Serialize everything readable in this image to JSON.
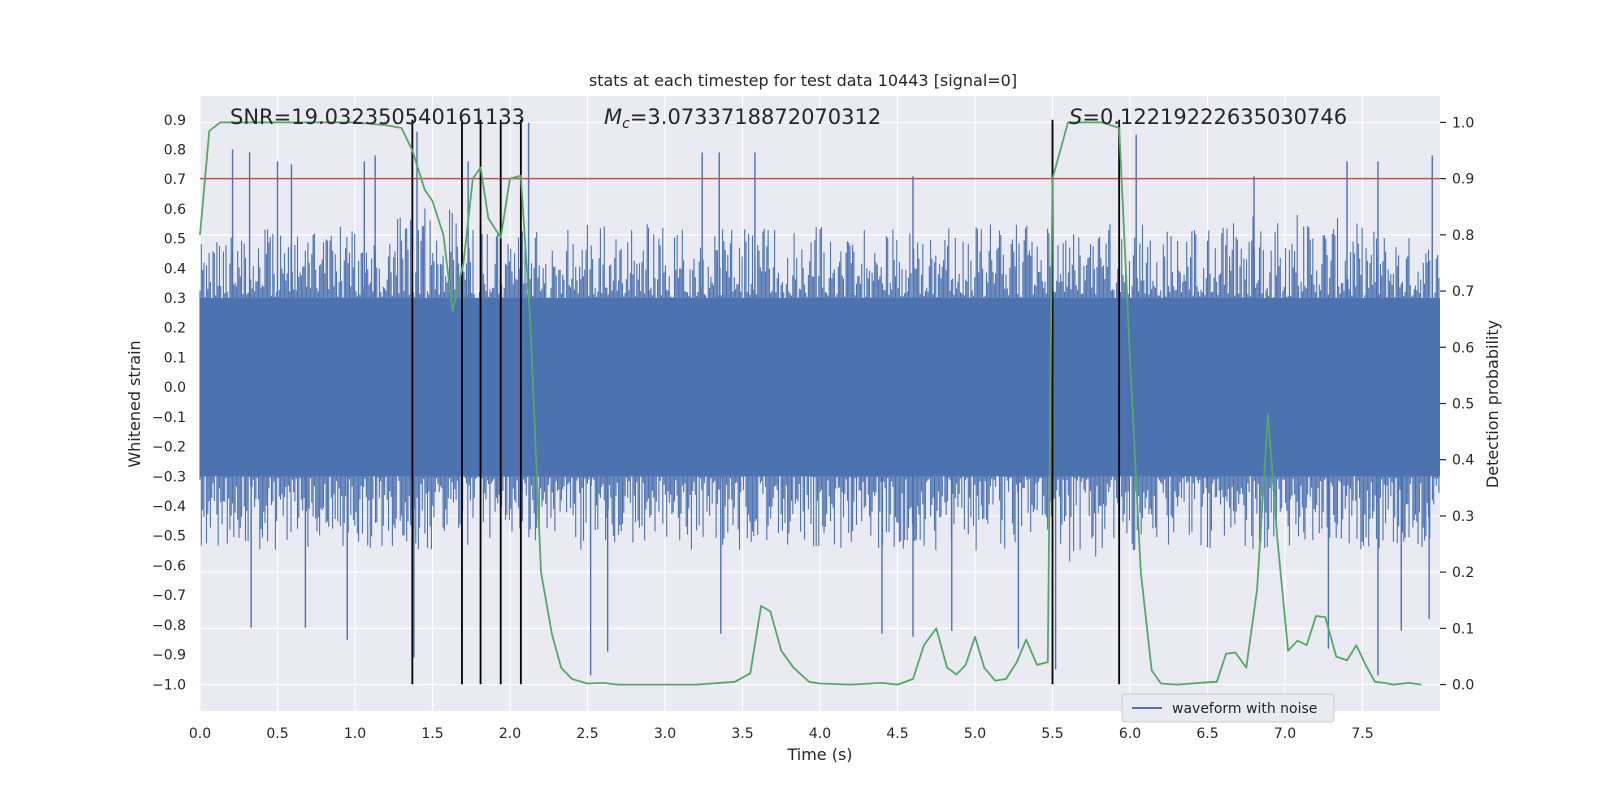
{
  "chart_data": {
    "type": "line",
    "title": "stats at each timestep for test data 10443 [signal=0]",
    "xlabel": "Time (s)",
    "ylabel": "Whitened strain",
    "y2label": "Detection probability",
    "xlim": [
      0.0,
      8.0
    ],
    "ylim": [
      -1.09,
      0.98
    ],
    "y2lim": [
      -0.047,
      1.047
    ],
    "x_ticks": [
      0.0,
      0.5,
      1.0,
      1.5,
      2.0,
      2.5,
      3.0,
      3.5,
      4.0,
      4.5,
      5.0,
      5.5,
      6.0,
      6.5,
      7.0,
      7.5
    ],
    "x_tick_labels": [
      "0.0",
      "0.5",
      "1.0",
      "1.5",
      "2.0",
      "2.5",
      "3.0",
      "3.5",
      "4.0",
      "4.5",
      "5.0",
      "5.5",
      "6.0",
      "6.5",
      "7.0",
      "7.5"
    ],
    "y_ticks": [
      0.9,
      0.8,
      0.7,
      0.6,
      0.5,
      0.4,
      0.3,
      0.2,
      0.1,
      0.0,
      -0.1,
      -0.2,
      -0.3,
      -0.4,
      -0.5,
      -0.6,
      -0.7,
      -0.8,
      -0.9,
      -1.0
    ],
    "y_tick_labels": [
      "0.9",
      "0.8",
      "0.7",
      "0.6",
      "0.5",
      "0.4",
      "0.3",
      "0.2",
      "0.1",
      "0.0",
      "−0.1",
      "−0.2",
      "−0.3",
      "−0.4",
      "−0.5",
      "−0.6",
      "−0.7",
      "−0.8",
      "−0.9",
      "−1.0"
    ],
    "y2_ticks": [
      1.0,
      0.9,
      0.8,
      0.7,
      0.6,
      0.5,
      0.4,
      0.3,
      0.2,
      0.1,
      0.0
    ],
    "y2_tick_labels": [
      "1.0",
      "0.9",
      "0.8",
      "0.7",
      "0.6",
      "0.5",
      "0.4",
      "0.3",
      "0.2",
      "0.1",
      "0.0"
    ],
    "grid": true,
    "legend": {
      "position": "lower-right",
      "entries": [
        "waveform with noise"
      ]
    },
    "annotations": {
      "snr": "SNR=19.032350540161133",
      "mc_symbol": "M",
      "mc_sub": "c",
      "mc_value": "=3.0733718872070312",
      "s_symbol": "S",
      "s_value": "=0.12219222635030746"
    },
    "threshold": {
      "value": 0.9,
      "axis": "right",
      "color": "#c44e52"
    },
    "vertical_markers": [
      1.37,
      1.69,
      1.81,
      1.94,
      2.07,
      5.5,
      5.93
    ],
    "series": [
      {
        "name": "waveform with noise",
        "axis": "left",
        "color": "#4c72b0",
        "envelope": [
          {
            "x": 0.0,
            "top": 0.45,
            "bottom": -0.5
          },
          {
            "x": 0.5,
            "top": 0.5,
            "bottom": -0.5
          },
          {
            "x": 1.0,
            "top": 0.5,
            "bottom": -0.5
          },
          {
            "x": 1.5,
            "top": 0.55,
            "bottom": -0.5
          },
          {
            "x": 2.0,
            "top": 0.5,
            "bottom": -0.5
          },
          {
            "x": 2.5,
            "top": 0.5,
            "bottom": -0.5
          },
          {
            "x": 3.0,
            "top": 0.5,
            "bottom": -0.5
          },
          {
            "x": 3.5,
            "top": 0.5,
            "bottom": -0.5
          },
          {
            "x": 4.0,
            "top": 0.5,
            "bottom": -0.5
          },
          {
            "x": 4.5,
            "top": 0.5,
            "bottom": -0.5
          },
          {
            "x": 5.0,
            "top": 0.5,
            "bottom": -0.5
          },
          {
            "x": 5.5,
            "top": 0.5,
            "bottom": -0.55
          },
          {
            "x": 6.0,
            "top": 0.5,
            "bottom": -0.5
          },
          {
            "x": 6.5,
            "top": 0.5,
            "bottom": -0.5
          },
          {
            "x": 7.0,
            "top": 0.55,
            "bottom": -0.5
          },
          {
            "x": 7.5,
            "top": 0.5,
            "bottom": -0.5
          },
          {
            "x": 8.0,
            "top": 0.45,
            "bottom": -0.5
          }
        ],
        "spikes": [
          {
            "x": 0.21,
            "y": 0.8
          },
          {
            "x": 0.32,
            "y": 0.79
          },
          {
            "x": 0.5,
            "y": 0.76
          },
          {
            "x": 0.59,
            "y": 0.75
          },
          {
            "x": 1.06,
            "y": 0.76
          },
          {
            "x": 1.13,
            "y": 0.78
          },
          {
            "x": 1.4,
            "y": 0.86
          },
          {
            "x": 2.12,
            "y": 0.89
          },
          {
            "x": 3.24,
            "y": 0.79
          },
          {
            "x": 3.58,
            "y": 0.79
          },
          {
            "x": 3.35,
            "y": 0.79
          },
          {
            "x": 5.5,
            "y": 0.89
          },
          {
            "x": 5.93,
            "y": 0.89
          },
          {
            "x": 6.04,
            "y": 0.85
          },
          {
            "x": 7.4,
            "y": 0.76
          },
          {
            "x": 7.6,
            "y": 0.76
          },
          {
            "x": 7.95,
            "y": 0.78
          },
          {
            "x": 1.73,
            "y": 0.76
          },
          {
            "x": 4.6,
            "y": 0.71
          },
          {
            "x": 6.8,
            "y": 0.71
          },
          {
            "x": 0.33,
            "y": -0.81
          },
          {
            "x": 0.68,
            "y": -0.81
          },
          {
            "x": 0.95,
            "y": -0.85
          },
          {
            "x": 1.38,
            "y": -0.91
          },
          {
            "x": 2.52,
            "y": -0.97
          },
          {
            "x": 2.63,
            "y": -0.89
          },
          {
            "x": 3.36,
            "y": -0.83
          },
          {
            "x": 4.4,
            "y": -0.83
          },
          {
            "x": 4.6,
            "y": -0.84
          },
          {
            "x": 4.85,
            "y": -0.82
          },
          {
            "x": 5.28,
            "y": -0.88
          },
          {
            "x": 5.52,
            "y": -0.95
          },
          {
            "x": 7.28,
            "y": -0.88
          },
          {
            "x": 7.6,
            "y": -0.97
          },
          {
            "x": 7.93,
            "y": -0.78
          },
          {
            "x": 7.75,
            "y": -0.82
          }
        ]
      },
      {
        "name": "detection probability",
        "axis": "right",
        "color": "#55a868",
        "x": [
          0.0,
          0.06,
          0.13,
          0.2,
          0.4,
          0.6,
          0.8,
          1.0,
          1.2,
          1.3,
          1.37,
          1.45,
          1.5,
          1.57,
          1.63,
          1.7,
          1.76,
          1.81,
          1.86,
          1.94,
          2.0,
          2.07,
          2.13,
          2.2,
          2.27,
          2.33,
          2.4,
          2.5,
          2.6,
          2.7,
          2.8,
          3.0,
          3.2,
          3.45,
          3.55,
          3.62,
          3.68,
          3.75,
          3.83,
          3.93,
          4.0,
          4.2,
          4.4,
          4.5,
          4.6,
          4.67,
          4.75,
          4.82,
          4.88,
          4.94,
          5.0,
          5.06,
          5.13,
          5.2,
          5.27,
          5.33,
          5.4,
          5.47,
          5.5,
          5.6,
          5.7,
          5.82,
          5.93,
          6.0,
          6.07,
          6.14,
          6.2,
          6.3,
          6.5,
          6.56,
          6.62,
          6.68,
          6.75,
          6.82,
          6.89,
          6.95,
          7.02,
          7.08,
          7.14,
          7.2,
          7.26,
          7.33,
          7.4,
          7.46,
          7.52,
          7.58,
          7.64,
          7.7,
          7.8,
          7.88
        ],
        "values": [
          0.8,
          0.985,
          1.0,
          1.0,
          1.0,
          1.0,
          1.0,
          1.0,
          0.995,
          0.99,
          0.95,
          0.88,
          0.86,
          0.8,
          0.665,
          0.75,
          0.9,
          0.92,
          0.83,
          0.795,
          0.9,
          0.905,
          0.65,
          0.2,
          0.09,
          0.03,
          0.01,
          0.002,
          0.003,
          0.0,
          0.0,
          0.0,
          0.0,
          0.005,
          0.02,
          0.14,
          0.13,
          0.06,
          0.03,
          0.005,
          0.002,
          0.0,
          0.003,
          0.0,
          0.01,
          0.07,
          0.1,
          0.03,
          0.018,
          0.035,
          0.085,
          0.03,
          0.007,
          0.01,
          0.04,
          0.08,
          0.035,
          0.04,
          0.9,
          1.0,
          1.0,
          1.0,
          0.99,
          0.58,
          0.2,
          0.025,
          0.002,
          0.0,
          0.004,
          0.005,
          0.055,
          0.057,
          0.03,
          0.17,
          0.48,
          0.26,
          0.06,
          0.078,
          0.07,
          0.122,
          0.12,
          0.05,
          0.043,
          0.07,
          0.035,
          0.005,
          0.003,
          0.0,
          0.003,
          0.0
        ]
      }
    ]
  }
}
